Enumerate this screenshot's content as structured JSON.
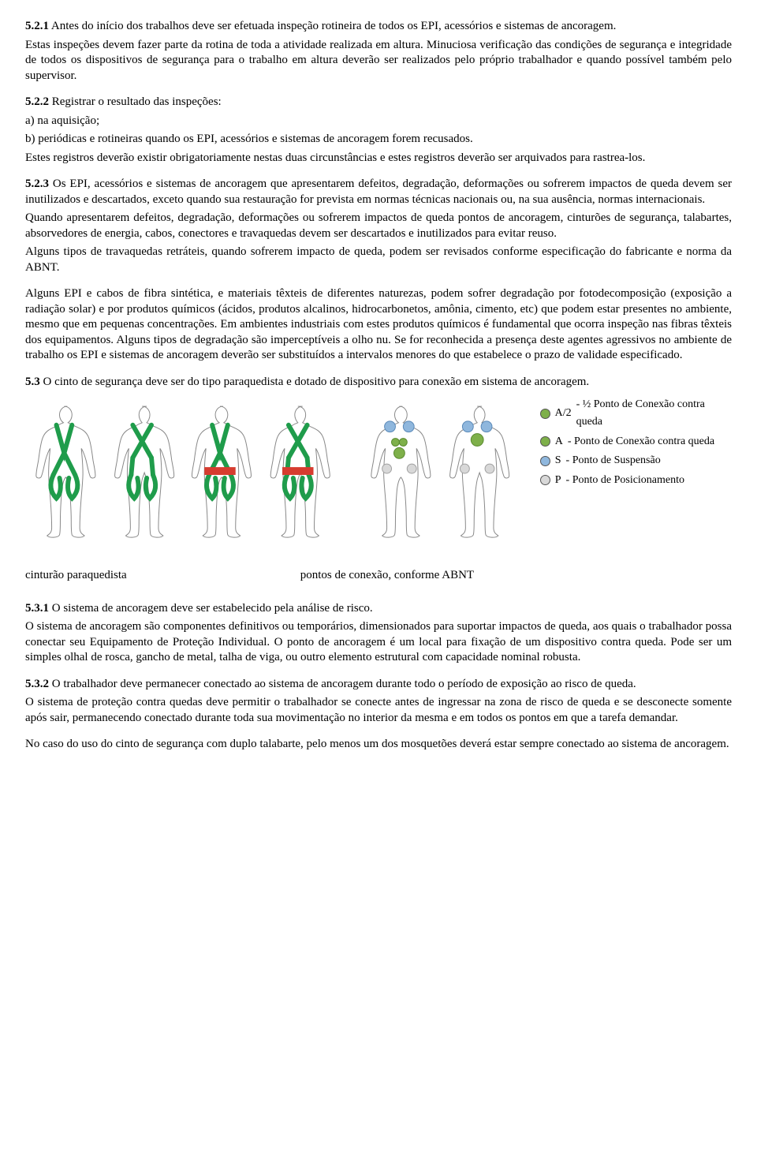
{
  "s521": {
    "num": "5.2.1",
    "t1": " Antes do início dos trabalhos deve ser efetuada inspeção rotineira de todos os EPI, acessórios e sistemas de ancoragem.",
    "t2": "Estas inspeções devem fazer parte da rotina de toda a atividade realizada em altura. Minuciosa verificação das condições de segurança e integridade de todos os dispositivos de segurança para o trabalho em altura deverão ser realizados pelo próprio trabalhador e quando possível também pelo supervisor."
  },
  "s522": {
    "num": "5.2.2",
    "t1": " Registrar o resultado das inspeções:",
    "a": "a) na aquisição;",
    "b": "b) periódicas e rotineiras quando os EPI, acessórios e sistemas de ancoragem forem recusados.",
    "t2": "Estes registros deverão existir obrigatoriamente nestas duas circunstâncias e estes registros deverão ser arquivados para rastrea-los."
  },
  "s523": {
    "num": "5.2.3",
    "t1": " Os EPI, acessórios e sistemas de ancoragem que apresentarem defeitos, degradação, deformações ou sofrerem impactos de queda devem ser inutilizados e descartados, exceto quando sua restauração for prevista em normas técnicas nacionais ou, na sua ausência, normas internacionais.",
    "t2": "Quando apresentarem defeitos, degradação, deformações ou sofrerem impactos de queda pontos de ancoragem, cinturões de segurança, talabartes, absorvedores de energia, cabos, conectores e travaquedas devem ser descartados e inutilizados para evitar reuso.",
    "t3": "Alguns tipos de travaquedas retráteis, quando sofrerem impacto de queda, podem ser revisados conforme especificação do fabricante e norma da ABNT.",
    "t4": "Alguns EPI e cabos de fibra sintética, e materiais têxteis de diferentes naturezas, podem sofrer degradação por fotodecomposição (exposição a radiação solar) e por produtos químicos (ácidos, produtos alcalinos, hidrocarbonetos, amônia, cimento, etc) que podem estar presentes no ambiente, mesmo que em pequenas concentrações. Em ambientes industriais com estes produtos químicos é fundamental que ocorra inspeção nas fibras têxteis dos equipamentos. Alguns tipos de degradação são imperceptíveis a olho nu. Se for reconhecida a presença deste agentes agressivos no ambiente de trabalho os EPI e sistemas de ancoragem deverão ser substituídos a intervalos menores do que estabelece o prazo de validade especificado."
  },
  "s53": {
    "num": "5.3",
    "t1": " O cinto de segurança deve ser do tipo paraquedista e dotado de dispositivo para conexão em sistema de ancoragem."
  },
  "legend": {
    "a2": {
      "code": "A/2",
      "label": " - ½  Ponto de Conexão contra queda",
      "color": "#7eb04a"
    },
    "a": {
      "code": "A",
      "label": "   - Ponto de Conexão contra queda",
      "color": "#7eb04a"
    },
    "s": {
      "code": "S",
      "label": "   - Ponto de Suspensão",
      "color": "#8fb7dd"
    },
    "p": {
      "code": "P",
      "label": "   - Ponto de Posicionamento",
      "color": "#d8d8d8"
    }
  },
  "captions": {
    "left": "cinturão paraquedista",
    "right": "pontos de conexão, conforme ABNT"
  },
  "s531": {
    "num": "5.3.1",
    "t1": " O sistema de ancoragem deve ser estabelecido pela análise de risco.",
    "t2": "O sistema de ancoragem são componentes definitivos ou temporários, dimensionados para suportar impactos de queda, aos quais o trabalhador possa conectar seu Equipamento de Proteção Individual. O ponto de ancoragem é um local para fixação de um dispositivo contra queda. Pode ser um simples olhal de rosca, gancho de metal, talha de viga, ou outro elemento estrutural com capacidade nominal robusta."
  },
  "s532": {
    "num": "5.3.2",
    "t1": " O trabalhador deve permanecer conectado ao sistema de ancoragem durante todo o período de exposição ao risco de queda.",
    "t2": "O sistema de proteção contra quedas deve permitir o trabalhador se conecte antes de ingressar na zona de risco de queda e se desconecte somente após sair, permanecendo conectado durante toda sua movimentação no interior da mesma e em todos os pontos em que a tarefa demandar.",
    "t3": "No caso do uso do cinto de segurança com duplo talabarte, pelo menos um dos mosquetões deverá estar sempre conectado ao sistema de ancoragem."
  },
  "harness": {
    "strap_color": "#1f9c4b",
    "belt_color": "#d63c2f",
    "body_fill": "#ffffff",
    "body_stroke": "#888888"
  },
  "points": {
    "green": "#7eb04a",
    "green_dark": "#5a8a2f",
    "blue": "#8fb7dd",
    "blue_dark": "#5a89b8",
    "grey": "#d8d8d8",
    "grey_dark": "#a0a0a0"
  }
}
